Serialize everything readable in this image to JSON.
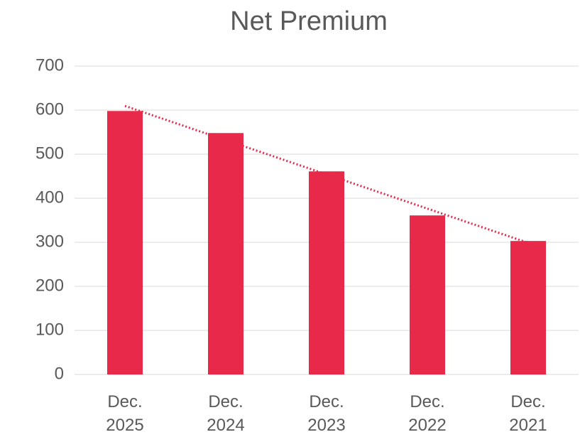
{
  "chart_data": {
    "type": "bar",
    "title": "Net Premium",
    "categories": [
      "Dec. 2025",
      "Dec. 2024",
      "Dec. 2023",
      "Dec. 2022",
      "Dec. 2021"
    ],
    "values": [
      598,
      548,
      461,
      361,
      303
    ],
    "color": "#e8294a",
    "trendline": "linear",
    "ylim": [
      0,
      700
    ],
    "yticks": [
      0,
      100,
      200,
      300,
      400,
      500,
      600,
      700
    ],
    "grid": true
  }
}
